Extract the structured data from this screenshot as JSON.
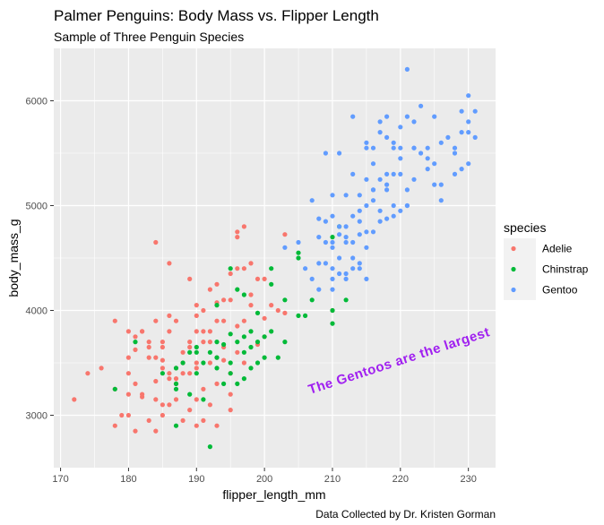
{
  "chart_data": {
    "type": "scatter",
    "title": "Palmer Penguins: Body Mass vs. Flipper Length",
    "subtitle": "Sample of Three Penguin Species",
    "caption": "Data Collected by Dr. Kristen Gorman",
    "xlabel": "flipper_length_mm",
    "ylabel": "body_mass_g",
    "xlim": [
      169,
      234
    ],
    "ylim": [
      2500,
      6500
    ],
    "x_ticks": [
      170,
      180,
      190,
      200,
      210,
      220,
      230
    ],
    "y_ticks": [
      3000,
      4000,
      5000,
      6000
    ],
    "grid": true,
    "legend": {
      "title": "species",
      "position": "right"
    },
    "annotation": {
      "text": "The Gentoos are the largest",
      "color": "#A020F0",
      "x": 220,
      "y": 3480,
      "angle": 18
    },
    "series": [
      {
        "name": "Adelie",
        "color": "#F8766D",
        "points": [
          [
            172,
            3150
          ],
          [
            174,
            3400
          ],
          [
            176,
            3450
          ],
          [
            178,
            3900
          ],
          [
            178,
            2900
          ],
          [
            179,
            3000
          ],
          [
            180,
            3550
          ],
          [
            180,
            3200
          ],
          [
            180,
            3000
          ],
          [
            180,
            3800
          ],
          [
            181,
            3750
          ],
          [
            181,
            3625
          ],
          [
            181,
            2850
          ],
          [
            182,
            3200
          ],
          [
            182,
            3175
          ],
          [
            182,
            3800
          ],
          [
            183,
            3550
          ],
          [
            183,
            2950
          ],
          [
            184,
            4650
          ],
          [
            184,
            3325
          ],
          [
            184,
            2850
          ],
          [
            184,
            3900
          ],
          [
            185,
            3450
          ],
          [
            185,
            3100
          ],
          [
            185,
            3650
          ],
          [
            185,
            3000
          ],
          [
            186,
            3800
          ],
          [
            186,
            4450
          ],
          [
            186,
            3400
          ],
          [
            186,
            3100
          ],
          [
            187,
            3900
          ],
          [
            187,
            3350
          ],
          [
            187,
            3450
          ],
          [
            188,
            3400
          ],
          [
            188,
            3600
          ],
          [
            188,
            2950
          ],
          [
            189,
            3050
          ],
          [
            189,
            4300
          ],
          [
            189,
            3650
          ],
          [
            190,
            3450
          ],
          [
            190,
            3800
          ],
          [
            190,
            3950
          ],
          [
            190,
            4050
          ],
          [
            190,
            3150
          ],
          [
            191,
            3700
          ],
          [
            191,
            3250
          ],
          [
            191,
            4000
          ],
          [
            192,
            3500
          ],
          [
            192,
            3700
          ],
          [
            192,
            3100
          ],
          [
            193,
            3550
          ],
          [
            193,
            3900
          ],
          [
            193,
            4075
          ],
          [
            193,
            4250
          ],
          [
            194,
            3900
          ],
          [
            194,
            4100
          ],
          [
            194,
            3525
          ],
          [
            195,
            3400
          ],
          [
            195,
            4350
          ],
          [
            195,
            3200
          ],
          [
            196,
            4400
          ],
          [
            196,
            3600
          ],
          [
            196,
            4700
          ],
          [
            196,
            4750
          ],
          [
            197,
            4400
          ],
          [
            197,
            4800
          ],
          [
            197,
            3900
          ],
          [
            198,
            4450
          ],
          [
            198,
            4150
          ],
          [
            199,
            4300
          ],
          [
            199,
            3675
          ],
          [
            200,
            4300
          ],
          [
            200,
            3925
          ],
          [
            201,
            4050
          ],
          [
            202,
            4000
          ],
          [
            203,
            4725
          ],
          [
            203,
            3975
          ],
          [
            210,
            4000
          ],
          [
            178,
            3250
          ],
          [
            185,
            3700
          ],
          [
            191,
            2950
          ],
          [
            194,
            3650
          ],
          [
            187,
            3300
          ],
          [
            183,
            3700
          ],
          [
            195,
            3050
          ],
          [
            193,
            3300
          ],
          [
            189,
            3700
          ],
          [
            197,
            3500
          ],
          [
            184,
            3550
          ],
          [
            190,
            3500
          ],
          [
            186,
            3350
          ],
          [
            188,
            3500
          ],
          [
            181,
            3300
          ],
          [
            192,
            3800
          ],
          [
            196,
            3850
          ],
          [
            200,
            3750
          ],
          [
            187,
            3150
          ],
          [
            183,
            3650
          ],
          [
            193,
            2900
          ],
          [
            190,
            2900
          ],
          [
            182,
            3800
          ],
          [
            185,
            3525
          ],
          [
            191,
            3800
          ],
          [
            189,
            3400
          ],
          [
            195,
            4100
          ],
          [
            184,
            3150
          ],
          [
            186,
            3950
          ],
          [
            192,
            4200
          ],
          [
            198,
            4050
          ],
          [
            180,
            3400
          ]
        ]
      },
      {
        "name": "Chinstrap",
        "color": "#00BA38",
        "points": [
          [
            178,
            3250
          ],
          [
            181,
            3700
          ],
          [
            185,
            3400
          ],
          [
            187,
            2900
          ],
          [
            187,
            3450
          ],
          [
            187,
            3300
          ],
          [
            188,
            3500
          ],
          [
            189,
            3200
          ],
          [
            190,
            3400
          ],
          [
            190,
            3600
          ],
          [
            191,
            3150
          ],
          [
            191,
            3500
          ],
          [
            192,
            2700
          ],
          [
            192,
            3600
          ],
          [
            193,
            3700
          ],
          [
            193,
            3450
          ],
          [
            193,
            3550
          ],
          [
            194,
            3300
          ],
          [
            195,
            3400
          ],
          [
            195,
            3775
          ],
          [
            195,
            4400
          ],
          [
            196,
            3700
          ],
          [
            196,
            3300
          ],
          [
            196,
            4200
          ],
          [
            197,
            3750
          ],
          [
            197,
            3600
          ],
          [
            198,
            3450
          ],
          [
            198,
            3650
          ],
          [
            199,
            3700
          ],
          [
            199,
            3500
          ],
          [
            200,
            3550
          ],
          [
            201,
            3800
          ],
          [
            201,
            4400
          ],
          [
            201,
            4250
          ],
          [
            203,
            3700
          ],
          [
            203,
            4100
          ],
          [
            205,
            4550
          ],
          [
            205,
            3950
          ],
          [
            206,
            3950
          ],
          [
            207,
            4100
          ],
          [
            210,
            3875
          ],
          [
            210,
            4000
          ],
          [
            212,
            4100
          ],
          [
            210,
            4700
          ],
          [
            189,
            3600
          ],
          [
            190,
            3650
          ],
          [
            193,
            4050
          ],
          [
            195,
            3500
          ],
          [
            197,
            3350
          ],
          [
            198,
            3800
          ],
          [
            199,
            3975
          ],
          [
            200,
            3750
          ],
          [
            202,
            3550
          ],
          [
            205,
            4500
          ],
          [
            211,
            4800
          ],
          [
            197,
            4150
          ],
          [
            194,
            3675
          ],
          [
            187,
            3250
          ]
        ]
      },
      {
        "name": "Gentoo",
        "color": "#619CFF",
        "points": [
          [
            203,
            4600
          ],
          [
            207,
            5050
          ],
          [
            208,
            4450
          ],
          [
            208,
            4700
          ],
          [
            209,
            4450
          ],
          [
            209,
            4850
          ],
          [
            209,
            5500
          ],
          [
            210,
            4400
          ],
          [
            210,
            4600
          ],
          [
            210,
            4300
          ],
          [
            210,
            4200
          ],
          [
            210,
            4650
          ],
          [
            211,
            4500
          ],
          [
            211,
            4800
          ],
          [
            211,
            4725
          ],
          [
            212,
            5100
          ],
          [
            212,
            4700
          ],
          [
            212,
            4800
          ],
          [
            213,
            4500
          ],
          [
            213,
            4900
          ],
          [
            213,
            5850
          ],
          [
            214,
            4400
          ],
          [
            214,
            5100
          ],
          [
            214,
            4725
          ],
          [
            215,
            4750
          ],
          [
            215,
            5000
          ],
          [
            215,
            5250
          ],
          [
            215,
            5600
          ],
          [
            216,
            4750
          ],
          [
            216,
            5050
          ],
          [
            216,
            5400
          ],
          [
            217,
            4950
          ],
          [
            217,
            5700
          ],
          [
            218,
            5300
          ],
          [
            218,
            4875
          ],
          [
            218,
            5200
          ],
          [
            219,
            5000
          ],
          [
            219,
            5600
          ],
          [
            220,
            4950
          ],
          [
            220,
            5450
          ],
          [
            221,
            5850
          ],
          [
            221,
            5000
          ],
          [
            221,
            6300
          ],
          [
            222,
            5250
          ],
          [
            222,
            5550
          ],
          [
            223,
            5500
          ],
          [
            224,
            5350
          ],
          [
            225,
            5400
          ],
          [
            226,
            5200
          ],
          [
            228,
            5550
          ],
          [
            229,
            5700
          ],
          [
            230,
            5700
          ],
          [
            230,
            5800
          ],
          [
            230,
            6050
          ],
          [
            231,
            5650
          ],
          [
            205,
            4650
          ],
          [
            206,
            4400
          ],
          [
            208,
            4200
          ],
          [
            211,
            4350
          ],
          [
            212,
            4300
          ],
          [
            213,
            5300
          ],
          [
            214,
            4850
          ],
          [
            215,
            5550
          ],
          [
            216,
            5150
          ],
          [
            217,
            4850
          ],
          [
            218,
            5650
          ],
          [
            219,
            5300
          ],
          [
            220,
            5750
          ],
          [
            221,
            5150
          ],
          [
            222,
            5550
          ],
          [
            224,
            5550
          ],
          [
            225,
            5850
          ],
          [
            226,
            5600
          ],
          [
            227,
            5650
          ],
          [
            228,
            5500
          ],
          [
            229,
            5900
          ],
          [
            209,
            4650
          ],
          [
            210,
            4900
          ],
          [
            212,
            4350
          ],
          [
            213,
            4650
          ],
          [
            214,
            4450
          ],
          [
            215,
            4600
          ],
          [
            216,
            5150
          ],
          [
            217,
            5250
          ],
          [
            218,
            5150
          ],
          [
            219,
            4900
          ],
          [
            220,
            5300
          ],
          [
            210,
            5100
          ],
          [
            211,
            5500
          ],
          [
            212,
            4650
          ],
          [
            213,
            4400
          ],
          [
            214,
            4950
          ],
          [
            215,
            4300
          ],
          [
            216,
            5550
          ],
          [
            217,
            5800
          ],
          [
            218,
            5850
          ],
          [
            221,
            5000
          ],
          [
            222,
            5800
          ],
          [
            223,
            5950
          ],
          [
            224,
            5450
          ],
          [
            225,
            5200
          ],
          [
            226,
            5050
          ],
          [
            230,
            5400
          ],
          [
            228,
            5300
          ],
          [
            229,
            5350
          ],
          [
            231,
            5900
          ],
          [
            207,
            4300
          ],
          [
            208,
            4875
          ],
          [
            219,
            5550
          ],
          [
            220,
            5550
          ]
        ]
      }
    ]
  }
}
